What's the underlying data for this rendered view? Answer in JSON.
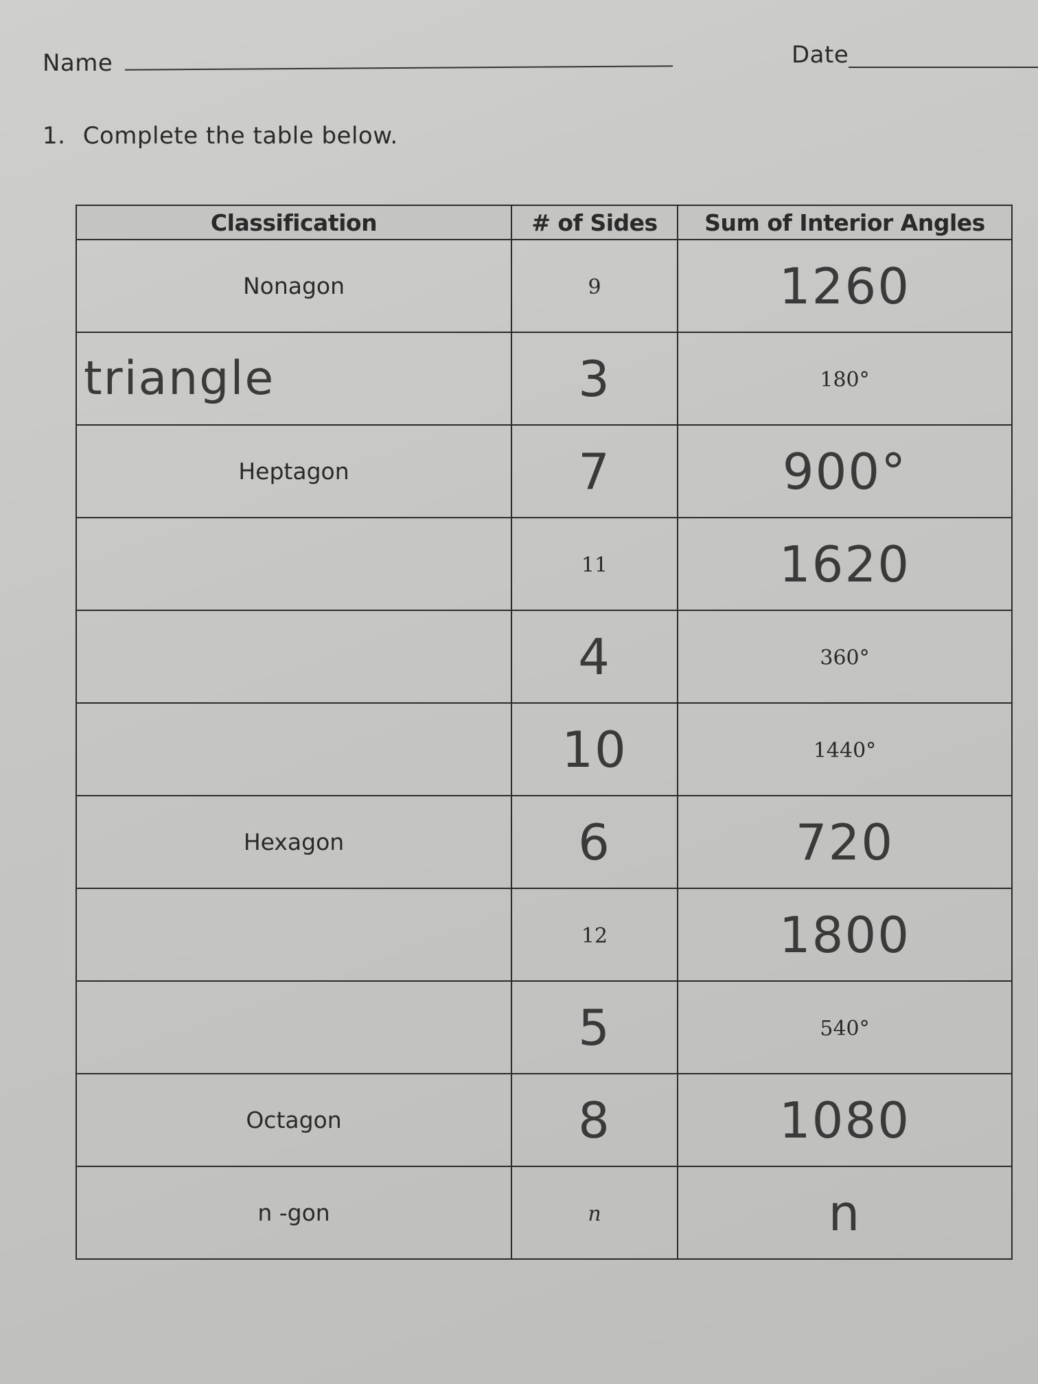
{
  "header": {
    "name_label": "Name",
    "date_label": "Date"
  },
  "question": {
    "number": "1.",
    "text": "Complete the table below."
  },
  "table": {
    "columns": [
      "Classification",
      "# of Sides",
      "Sum of Interior Angles"
    ],
    "rows": [
      {
        "classification": "Nonagon",
        "sides": "9",
        "sum": "1260",
        "handwritten": [
          "sum"
        ]
      },
      {
        "classification": "triangle",
        "sides": "3",
        "sum": "180°",
        "handwritten": [
          "classification",
          "sides"
        ]
      },
      {
        "classification": "Heptagon",
        "sides": "7",
        "sum": "900°",
        "handwritten": [
          "sides",
          "sum"
        ]
      },
      {
        "classification": "",
        "sides": "11",
        "sum": "1620",
        "handwritten": [
          "sum"
        ]
      },
      {
        "classification": "",
        "sides": "4",
        "sum": "360°",
        "handwritten": [
          "sides"
        ]
      },
      {
        "classification": "",
        "sides": "10",
        "sum": "1440°",
        "handwritten": [
          "sides"
        ]
      },
      {
        "classification": "Hexagon",
        "sides": "6",
        "sum": "720",
        "handwritten": [
          "sides",
          "sum"
        ]
      },
      {
        "classification": "",
        "sides": "12",
        "sum": "1800",
        "handwritten": [
          "sum"
        ]
      },
      {
        "classification": "",
        "sides": "5",
        "sum": "540°",
        "handwritten": [
          "sides"
        ]
      },
      {
        "classification": "Octagon",
        "sides": "8",
        "sum": "1080",
        "handwritten": [
          "sides",
          "sum"
        ]
      },
      {
        "classification": "n -gon",
        "sides": "n",
        "sum": "n",
        "handwritten": [
          "sum"
        ]
      }
    ]
  }
}
